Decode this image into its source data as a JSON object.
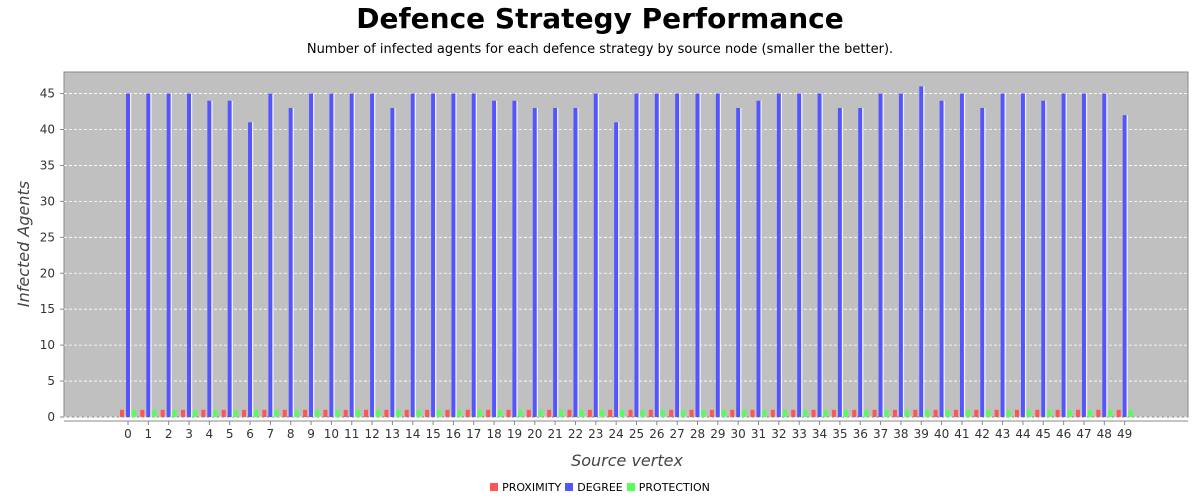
{
  "chart_data": {
    "type": "bar",
    "title": "Defence Strategy Performance",
    "subtitle": "Number of infected agents for each defence strategy by source node (smaller the better).",
    "xlabel": "Source vertex",
    "ylabel": "Infected Agents",
    "ylim": [
      0,
      48
    ],
    "yticks": [
      0,
      5,
      10,
      15,
      20,
      25,
      30,
      35,
      40,
      45
    ],
    "grid": true,
    "legend_position": "bottom",
    "background": "#c0c0c0",
    "categories": [
      "0",
      "1",
      "2",
      "3",
      "4",
      "5",
      "6",
      "7",
      "8",
      "9",
      "10",
      "11",
      "12",
      "13",
      "14",
      "15",
      "16",
      "17",
      "18",
      "19",
      "20",
      "21",
      "22",
      "23",
      "24",
      "25",
      "26",
      "27",
      "28",
      "29",
      "30",
      "31",
      "32",
      "33",
      "34",
      "35",
      "36",
      "37",
      "38",
      "39",
      "40",
      "41",
      "42",
      "43",
      "44",
      "45",
      "46",
      "47",
      "48",
      "49"
    ],
    "series": [
      {
        "name": "PROXIMITY",
        "color": "#ff5555",
        "values": [
          1,
          1,
          1,
          1,
          1,
          1,
          1,
          1,
          1,
          1,
          1,
          1,
          1,
          1,
          1,
          1,
          1,
          1,
          1,
          1,
          1,
          1,
          1,
          1,
          1,
          1,
          1,
          1,
          1,
          1,
          1,
          1,
          1,
          1,
          1,
          1,
          1,
          1,
          1,
          1,
          1,
          1,
          1,
          1,
          1,
          1,
          1,
          1,
          1,
          1
        ]
      },
      {
        "name": "DEGREE",
        "color": "#5555ff",
        "values": [
          45,
          45,
          45,
          45,
          44,
          44,
          41,
          45,
          43,
          45,
          45,
          45,
          45,
          43,
          45,
          45,
          45,
          45,
          44,
          44,
          43,
          43,
          43,
          45,
          41,
          45,
          45,
          45,
          45,
          45,
          43,
          44,
          45,
          45,
          45,
          43,
          43,
          45,
          45,
          46,
          44,
          45,
          43,
          45,
          45,
          44,
          45,
          45,
          45,
          42
        ]
      },
      {
        "name": "PROTECTION",
        "color": "#55ff55",
        "values": [
          1,
          1,
          1,
          1,
          1,
          1,
          1,
          1,
          1,
          1,
          1,
          1,
          1,
          1,
          1,
          1,
          1,
          1,
          1,
          1,
          1,
          1,
          1,
          1,
          1,
          1,
          1,
          1,
          1,
          1,
          1,
          1,
          1,
          1,
          1,
          1,
          1,
          1,
          1,
          1,
          1,
          1,
          1,
          1,
          1,
          1,
          1,
          1,
          1,
          1
        ]
      }
    ]
  }
}
